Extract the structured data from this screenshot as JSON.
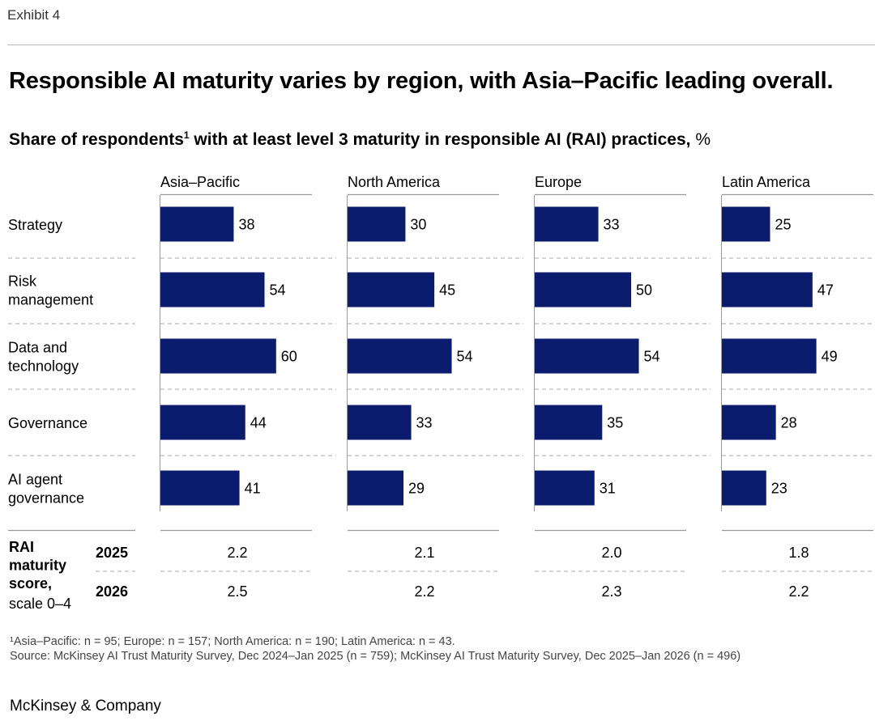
{
  "exhibit_label": "Exhibit 4",
  "title": "Responsible AI maturity varies by region, with Asia–Pacific leading overall.",
  "subtitle": {
    "text": "Share of respondents",
    "footnote_marker": "1",
    "rest": " with at least level 3 maturity in responsible AI (RAI) practices,",
    "unit": " %"
  },
  "colors": {
    "bar": "#0b1b6e",
    "rule": "#9a9a9a",
    "dash": "#a8a8a8"
  },
  "chart_data": {
    "type": "bar",
    "orientation": "horizontal",
    "categories": [
      "Strategy",
      "Risk management",
      "Data and technology",
      "Governance",
      "AI agent governance"
    ],
    "category_labels": [
      [
        "Strategy"
      ],
      [
        "Risk",
        "management"
      ],
      [
        "Data and",
        "technology"
      ],
      [
        "Governance"
      ],
      [
        "AI agent",
        "governance"
      ]
    ],
    "series": [
      {
        "name": "Asia–Pacific",
        "values": [
          38,
          54,
          60,
          44,
          41
        ]
      },
      {
        "name": "North America",
        "values": [
          30,
          45,
          54,
          33,
          29
        ]
      },
      {
        "name": "Europe",
        "values": [
          33,
          50,
          54,
          35,
          31
        ]
      },
      {
        "name": "Latin America",
        "values": [
          25,
          47,
          49,
          28,
          23
        ]
      }
    ],
    "xlim": [
      0,
      100
    ],
    "maturity_score": {
      "label": [
        "RAI",
        "maturity",
        "score,"
      ],
      "scale_label": "scale 0–4",
      "years": [
        "2025",
        "2026"
      ],
      "values": {
        "2025": [
          "2.2",
          "2.1",
          "2.0",
          "1.8"
        ],
        "2026": [
          "2.5",
          "2.2",
          "2.3",
          "2.2"
        ]
      }
    }
  },
  "footnotes": [
    "¹Asia–Pacific: n = 95; Europe: n = 157; North America: n = 190; Latin America: n = 43.",
    "Source: McKinsey AI Trust Maturity Survey, Dec 2024–Jan 2025 (n = 759); McKinsey AI Trust Maturity Survey, Dec 2025–Jan 2026 (n = 496)"
  ],
  "brand": "McKinsey & Company"
}
